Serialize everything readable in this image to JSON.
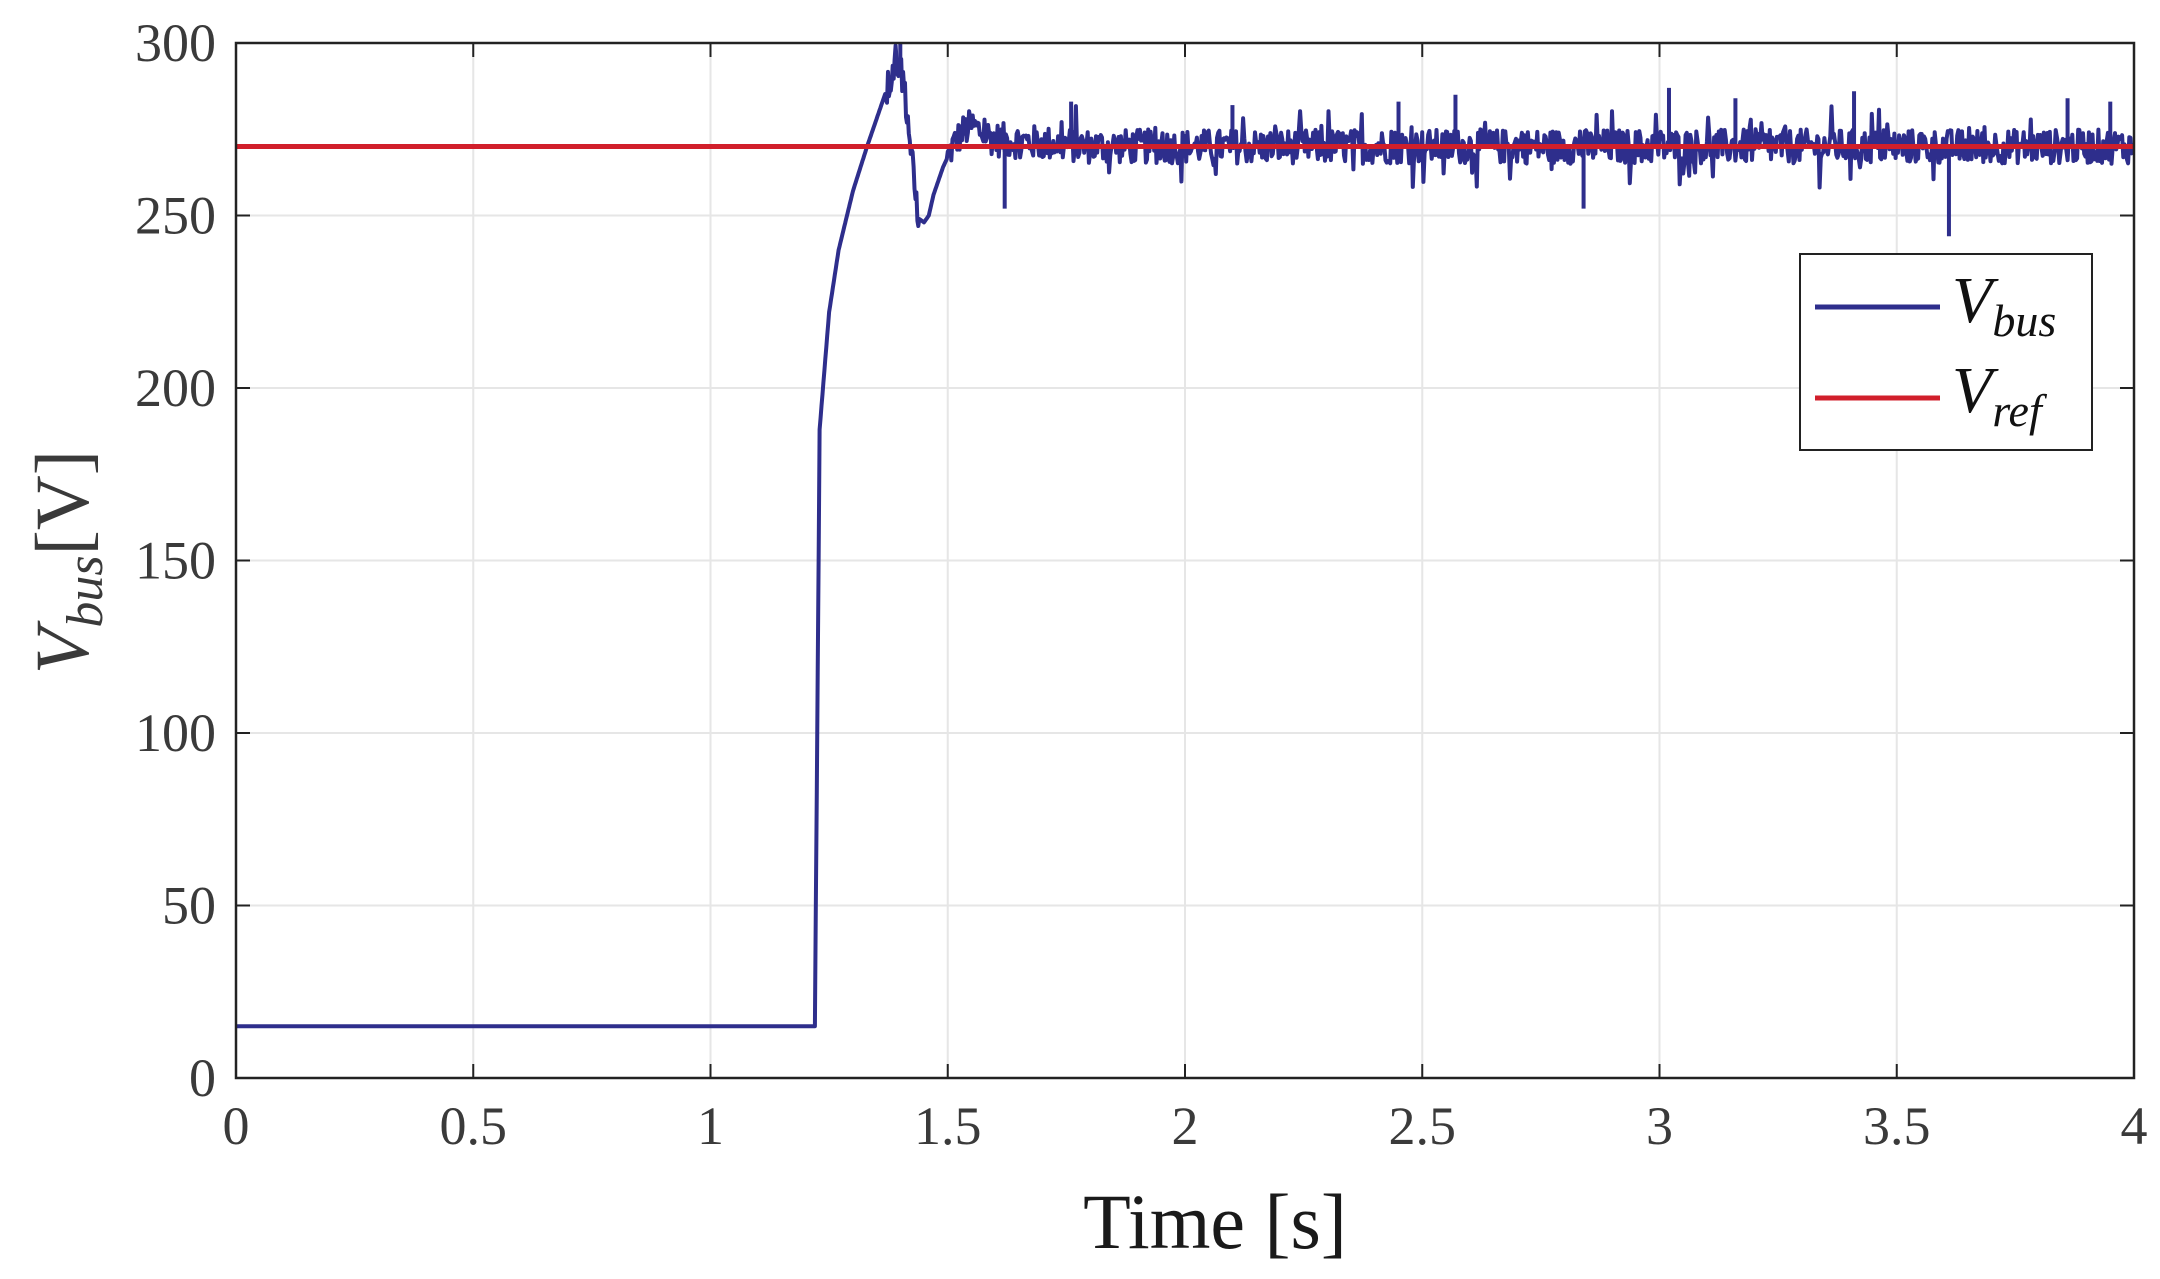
{
  "chart_data": {
    "type": "line",
    "xlabel": "Time [s]",
    "ylabel": {
      "symbol": "V",
      "sub": "bus",
      "unit": "[V]"
    },
    "xlim": [
      0,
      4
    ],
    "ylim": [
      0,
      300
    ],
    "x_ticks": [
      0,
      0.5,
      1,
      1.5,
      2,
      2.5,
      3,
      3.5,
      4
    ],
    "y_ticks": [
      0,
      50,
      100,
      150,
      200,
      250,
      300
    ],
    "x_tick_labels": [
      "0",
      "0.5",
      "1",
      "1.5",
      "2",
      "2.5",
      "3",
      "3.5",
      "4"
    ],
    "y_tick_labels": [
      "0",
      "50",
      "100",
      "150",
      "200",
      "250",
      "300"
    ],
    "grid": true,
    "legend_position": "top-right",
    "series": [
      {
        "name": "V_bus",
        "legend": {
          "symbol": "V",
          "sub": "bus"
        },
        "color": "#2e2e8c",
        "x": [
          0,
          1.22,
          1.225,
          1.23,
          1.24,
          1.25,
          1.27,
          1.3,
          1.33,
          1.36,
          1.38,
          1.39,
          1.4,
          1.41,
          1.42,
          1.43,
          1.44,
          1.45,
          1.46,
          1.47,
          1.49,
          1.51,
          1.53,
          1.55,
          1.6,
          1.7,
          1.8,
          1.9,
          2.0,
          2.2,
          2.4,
          2.6,
          2.8,
          3.0,
          3.2,
          3.4,
          3.6,
          3.8,
          4.0
        ],
        "values": [
          15,
          15,
          100,
          188,
          205,
          222,
          240,
          257,
          270,
          282,
          290,
          296,
          293,
          286,
          272,
          258,
          249,
          248,
          250,
          256,
          264,
          270,
          274,
          276,
          272,
          271,
          270,
          270,
          270,
          270,
          270,
          270,
          270,
          270,
          270,
          270,
          270,
          270,
          270
        ],
        "noise": {
          "start": 1.5,
          "end": 4.0,
          "amplitude_typical": 5,
          "spikes": [
            [
              1.4,
              300
            ],
            [
              1.62,
              252
            ],
            [
              1.76,
              283
            ],
            [
              2.1,
              282
            ],
            [
              2.45,
              283
            ],
            [
              2.57,
              285
            ],
            [
              2.84,
              252
            ],
            [
              3.02,
              287
            ],
            [
              3.16,
              284
            ],
            [
              3.41,
              286
            ],
            [
              3.61,
              244
            ],
            [
              3.86,
              284
            ],
            [
              3.95,
              283
            ]
          ]
        }
      },
      {
        "name": "V_ref",
        "legend": {
          "symbol": "V",
          "sub": "ref"
        },
        "color": "#d11f2b",
        "x": [
          0,
          4
        ],
        "values": [
          270,
          270
        ]
      }
    ]
  }
}
